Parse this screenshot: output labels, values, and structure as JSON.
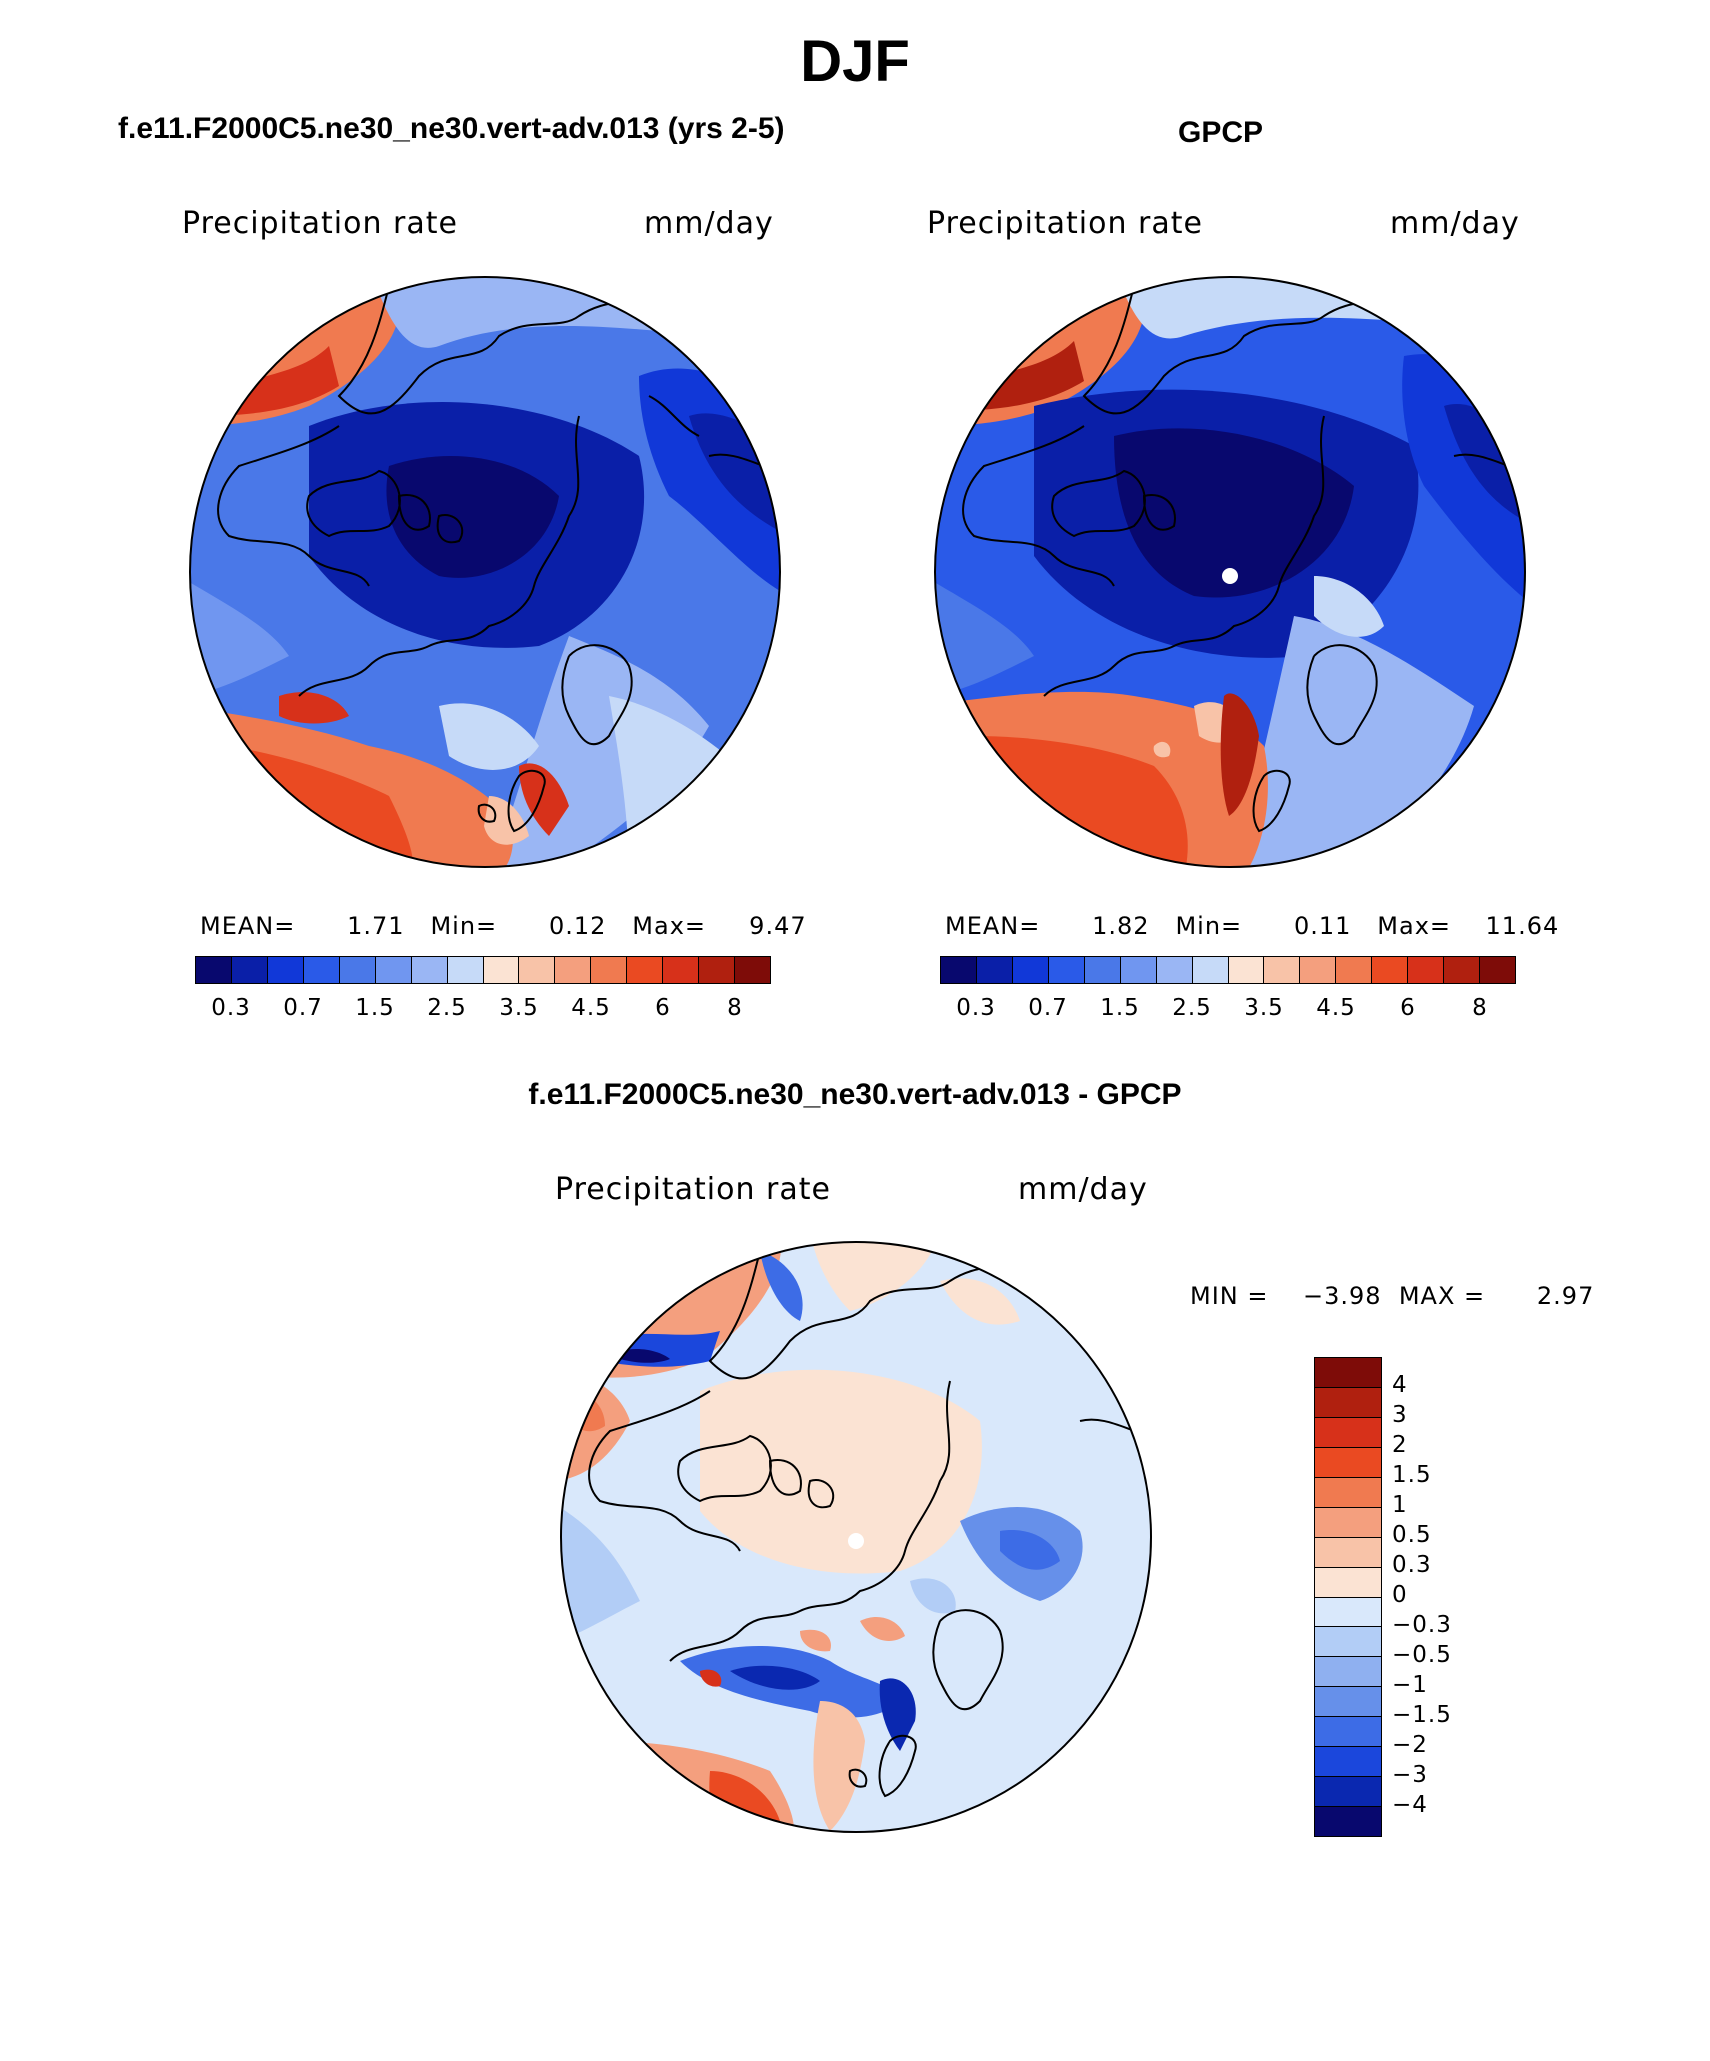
{
  "title": "DJF",
  "panels": [
    {
      "id": "model",
      "subtitle": "f.e11.F2000C5.ne30_ne30.vert-adv.013 (yrs 2-5)",
      "left_label": "Precipitation rate",
      "right_label": "mm/day",
      "stats": {
        "mean_label": "MEAN=",
        "mean": "1.71",
        "min_label": "Min=",
        "min": "0.12",
        "max_label": "Max=",
        "max": "9.47"
      }
    },
    {
      "id": "obs",
      "subtitle": "GPCP",
      "left_label": "Precipitation rate",
      "right_label": "mm/day",
      "stats": {
        "mean_label": "MEAN=",
        "mean": "1.82",
        "min_label": "Min=",
        "min": "0.11",
        "max_label": "Max=",
        "max": "11.64"
      }
    },
    {
      "id": "diff",
      "subtitle": "f.e11.F2000C5.ne30_ne30.vert-adv.013 - GPCP",
      "left_label": "Precipitation rate",
      "right_label": "mm/day",
      "stats": {
        "min_label": "MIN =",
        "min": "−3.98",
        "max_label": "MAX =",
        "max": "2.97"
      }
    }
  ],
  "abs_colorbar": {
    "colors": [
      "#08086e",
      "#0a1fa8",
      "#1138d8",
      "#2a5ae8",
      "#4a78e8",
      "#7096f0",
      "#9ab6f4",
      "#c6daf8",
      "#fbe3d3",
      "#f8c3a8",
      "#f49f7e",
      "#f07a50",
      "#ea4a22",
      "#d7311a",
      "#b0200f",
      "#7e0c08"
    ],
    "tick_labels": [
      "0.3",
      "0.7",
      "1.5",
      "2.5",
      "3.5",
      "4.5",
      "6",
      "8"
    ]
  },
  "diff_colorbar": {
    "colors": [
      "#7e0c08",
      "#b0200f",
      "#d7311a",
      "#ea4a22",
      "#f07a50",
      "#f49f7e",
      "#f8c3a8",
      "#fbe3d3",
      "#d9e8fb",
      "#b2cdf6",
      "#8fb0f0",
      "#6690ea",
      "#3d6ce6",
      "#1b47dc",
      "#0a28b0",
      "#08086e"
    ],
    "tick_labels": [
      "4",
      "3",
      "2",
      "1.5",
      "1",
      "0.5",
      "0.3",
      "0",
      "−0.3",
      "−0.5",
      "−1",
      "−1.5",
      "−2",
      "−3",
      "−4"
    ]
  }
}
